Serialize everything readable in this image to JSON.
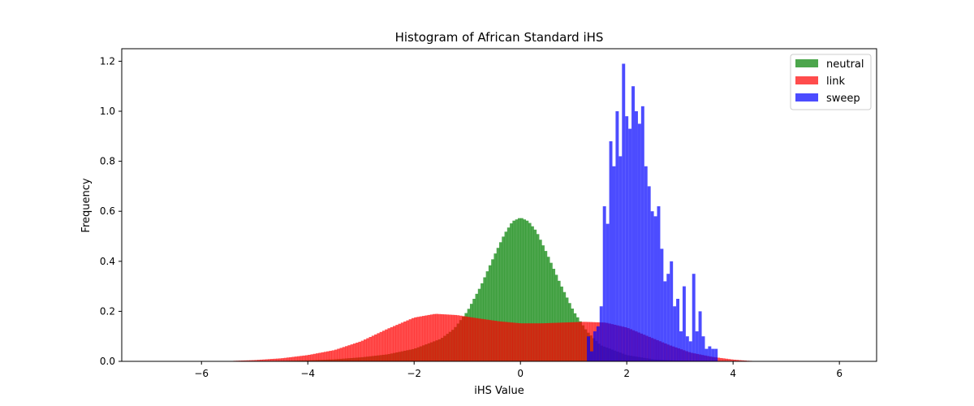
{
  "chart_data": {
    "type": "bar",
    "title": "Histogram of African Standard iHS",
    "xlabel": "iHS Value",
    "ylabel": "Frequency",
    "xlim": [
      -7.5,
      6.7
    ],
    "ylim": [
      0,
      1.25
    ],
    "xticks": [
      -6,
      -4,
      -2,
      0,
      2,
      4,
      6
    ],
    "yticks": [
      0.0,
      0.2,
      0.4,
      0.6,
      0.8,
      1.0,
      1.2
    ],
    "legend_position": "top-right",
    "alpha": 0.7,
    "series": [
      {
        "name": "neutral",
        "color": "#008000",
        "bin_width": 0.05,
        "x": [
          -6.0,
          -5.0,
          -4.5,
          -4.0,
          -3.5,
          -3.0,
          -2.5,
          -2.0,
          -1.5,
          -1.25,
          -1.0,
          -0.75,
          -0.5,
          -0.3,
          -0.15,
          0.0,
          0.15,
          0.3,
          0.5,
          0.75,
          1.0,
          1.25,
          1.5,
          2.0,
          2.5,
          3.0,
          3.5,
          4.0
        ],
        "values": [
          0.0,
          0.001,
          0.002,
          0.004,
          0.008,
          0.016,
          0.028,
          0.05,
          0.09,
          0.13,
          0.2,
          0.3,
          0.42,
          0.51,
          0.56,
          0.575,
          0.56,
          0.52,
          0.43,
          0.31,
          0.2,
          0.12,
          0.065,
          0.025,
          0.008,
          0.003,
          0.001,
          0.0
        ]
      },
      {
        "name": "link",
        "color": "#ff0000",
        "bin_width": 0.05,
        "x": [
          -5.4,
          -5.0,
          -4.5,
          -4.0,
          -3.5,
          -3.0,
          -2.5,
          -2.0,
          -1.6,
          -1.2,
          -0.8,
          -0.4,
          0.0,
          0.4,
          0.8,
          1.2,
          1.6,
          2.0,
          2.4,
          2.8,
          3.2,
          3.6,
          4.0,
          4.3
        ],
        "values": [
          0.002,
          0.005,
          0.012,
          0.025,
          0.045,
          0.08,
          0.13,
          0.175,
          0.19,
          0.185,
          0.172,
          0.16,
          0.152,
          0.152,
          0.155,
          0.158,
          0.155,
          0.135,
          0.1,
          0.065,
          0.035,
          0.018,
          0.007,
          0.002
        ]
      },
      {
        "name": "sweep",
        "color": "#0000ff",
        "bin_width": 0.06,
        "x": [
          1.25,
          1.31,
          1.37,
          1.43,
          1.49,
          1.55,
          1.61,
          1.67,
          1.73,
          1.79,
          1.85,
          1.91,
          1.97,
          2.03,
          2.09,
          2.15,
          2.21,
          2.27,
          2.33,
          2.39,
          2.45,
          2.51,
          2.57,
          2.63,
          2.69,
          2.75,
          2.81,
          2.87,
          2.93,
          2.99,
          3.05,
          3.11,
          3.17,
          3.23,
          3.29,
          3.35,
          3.41,
          3.47,
          3.53,
          3.59,
          3.65,
          3.71
        ],
        "values": [
          0.1,
          0.04,
          0.12,
          0.14,
          0.22,
          0.62,
          0.55,
          0.88,
          0.78,
          1.0,
          0.82,
          1.19,
          0.98,
          0.93,
          1.1,
          1.0,
          0.95,
          1.02,
          0.78,
          0.7,
          0.6,
          0.58,
          0.62,
          0.45,
          0.32,
          0.35,
          0.4,
          0.22,
          0.25,
          0.12,
          0.3,
          0.1,
          0.08,
          0.35,
          0.12,
          0.2,
          0.1,
          0.05,
          0.06,
          0.05,
          0.05,
          0.0
        ]
      }
    ]
  }
}
